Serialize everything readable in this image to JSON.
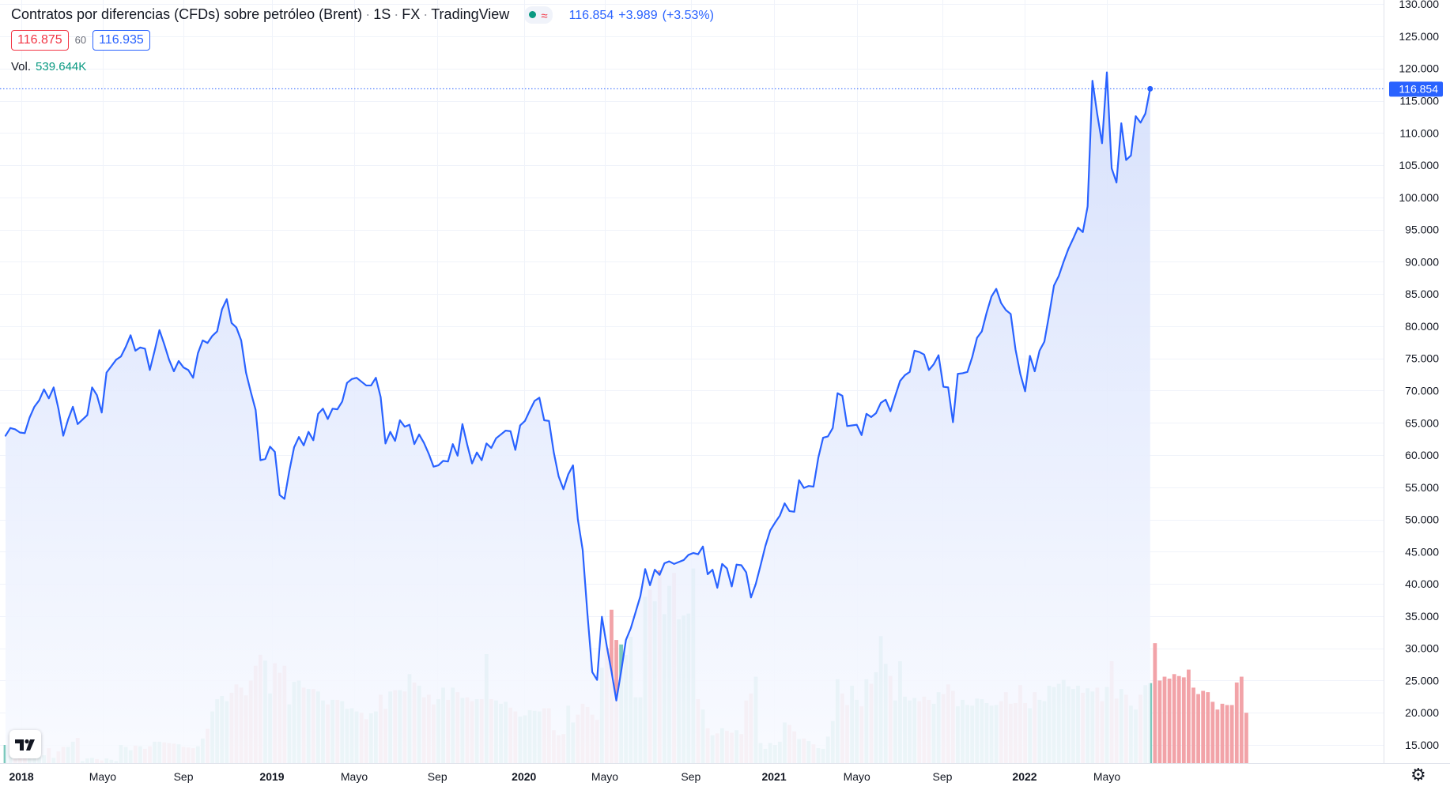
{
  "header": {
    "title": "Contratos por diferencias (CFDs) sobre petróleo (Brent)",
    "interval": "1S",
    "exchange": "FX",
    "provider": "TradingView",
    "last": "116.854",
    "change": "+3.989",
    "change_pct": "(+3.53%)",
    "bid": "116.875",
    "spread": "60",
    "ask": "116.935",
    "vol_label": "Vol.",
    "vol_value": "539.644K",
    "status_icon": "market-open-dot-icon",
    "approx_symbol": "≈"
  },
  "colors": {
    "line": "#2962ff",
    "area_top": "#d6e0fc",
    "area_bottom": "#f8faff",
    "vol_up": "#7cc9bd",
    "vol_down": "#f2a3a8",
    "grid": "#f0f3fa",
    "price_label_bg": "#2962ff"
  },
  "chart_data": {
    "type": "area",
    "title": "Contratos por diferencias (CFDs) sobre petróleo (Brent)",
    "xlabel": "",
    "ylabel": "",
    "ylim": [
      11,
      131
    ],
    "y_ticks": [
      "15.000",
      "20.000",
      "25.000",
      "30.000",
      "35.000",
      "40.000",
      "45.000",
      "50.000",
      "55.000",
      "60.000",
      "65.000",
      "70.000",
      "75.000",
      "80.000",
      "85.000",
      "90.000",
      "95.000",
      "100.000",
      "105.000",
      "110.000",
      "115.000",
      "120.000",
      "125.000",
      "130.000"
    ],
    "x_ticks": [
      {
        "label": "2018",
        "week": 3.3,
        "bold": true
      },
      {
        "label": "Mayo",
        "week": 20.2,
        "bold": false
      },
      {
        "label": "Sep",
        "week": 37.0,
        "bold": false
      },
      {
        "label": "2019",
        "week": 55.4,
        "bold": true
      },
      {
        "label": "Mayo",
        "week": 72.5,
        "bold": false
      },
      {
        "label": "Sep",
        "week": 89.8,
        "bold": false
      },
      {
        "label": "2020",
        "week": 107.8,
        "bold": true
      },
      {
        "label": "Mayo",
        "week": 124.6,
        "bold": false
      },
      {
        "label": "Sep",
        "week": 142.5,
        "bold": false
      },
      {
        "label": "2021",
        "week": 159.8,
        "bold": true
      },
      {
        "label": "Mayo",
        "week": 177.0,
        "bold": false
      },
      {
        "label": "Sep",
        "week": 194.8,
        "bold": false
      },
      {
        "label": "2022",
        "week": 211.9,
        "bold": true
      },
      {
        "label": "Mayo",
        "week": 229.0,
        "bold": false
      }
    ],
    "last_price_label": "116.854",
    "series": [
      {
        "name": "Brent",
        "values": [
          63.0,
          64.2,
          64.0,
          63.5,
          63.4,
          65.8,
          67.5,
          68.5,
          70.2,
          68.8,
          70.5,
          67.2,
          63.0,
          65.5,
          67.5,
          64.8,
          65.5,
          66.2,
          70.5,
          69.3,
          66.6,
          72.8,
          73.8,
          74.8,
          75.3,
          76.8,
          78.6,
          76.2,
          76.7,
          76.5,
          73.2,
          76.2,
          79.4,
          77.2,
          74.8,
          73.0,
          74.6,
          73.6,
          73.2,
          72.0,
          75.8,
          77.8,
          77.4,
          78.5,
          79.2,
          82.6,
          84.2,
          80.5,
          79.8,
          77.8,
          72.8,
          69.8,
          67.0,
          59.2,
          59.4,
          61.3,
          60.5,
          53.8,
          53.2,
          57.5,
          61.2,
          62.8,
          61.5,
          63.6,
          62.3,
          66.4,
          67.2,
          65.6,
          67.2,
          67.1,
          68.3,
          71.2,
          71.8,
          72.0,
          71.4,
          70.8,
          70.8,
          72.0,
          69.0,
          61.8,
          63.6,
          62.2,
          65.4,
          64.4,
          64.7,
          61.7,
          63.2,
          61.9,
          60.2,
          58.2,
          58.4,
          59.1,
          59.0,
          61.7,
          59.9,
          64.8,
          61.6,
          58.7,
          60.4,
          59.2,
          61.8,
          61.1,
          62.6,
          63.2,
          63.8,
          63.7,
          60.8,
          64.6,
          65.3,
          66.9,
          68.4,
          68.9,
          65.4,
          65.3,
          60.4,
          56.7,
          54.7,
          57.0,
          58.4,
          50.0,
          45.3,
          35.3,
          26.3,
          25.1,
          34.9,
          30.4,
          26.4,
          21.9,
          26.4,
          31.3,
          33.1,
          35.6,
          38.1,
          42.3,
          39.8,
          42.2,
          41.4,
          43.2,
          43.5,
          43.1,
          43.4,
          43.7,
          44.5,
          44.8,
          44.6,
          45.8,
          41.5,
          42.2,
          39.4,
          43.1,
          42.4,
          39.6,
          43.0,
          42.9,
          41.8,
          37.9,
          40.0,
          42.9,
          45.9,
          48.3,
          49.5,
          50.6,
          52.5,
          51.3,
          51.2,
          56.1,
          54.9,
          55.2,
          55.1,
          59.6,
          62.7,
          62.9,
          64.2,
          69.6,
          69.2,
          64.5,
          64.6,
          64.7,
          63.1,
          66.4,
          65.9,
          66.5,
          68.1,
          68.6,
          66.8,
          69.2,
          71.5,
          72.4,
          72.9,
          76.2,
          76.0,
          75.6,
          73.2,
          74.1,
          75.5,
          70.6,
          70.5,
          65.1,
          72.6,
          72.7,
          72.9,
          75.2,
          78.2,
          79.2,
          82.1,
          84.6,
          85.8,
          83.6,
          82.5,
          81.9,
          76.4,
          72.6,
          69.9,
          75.4,
          73.0,
          76.2,
          77.6,
          81.8,
          86.3,
          87.8,
          90.0,
          92.0,
          93.6,
          95.3,
          94.6,
          98.6,
          118.1,
          112.9,
          108.4,
          119.4,
          104.5,
          102.3,
          111.5,
          105.8,
          106.5,
          112.6,
          111.6,
          113.0,
          116.854
        ]
      }
    ],
    "volume_scale": {
      "unit": "price-axis",
      "note": "volume pane shares the price axis baseline"
    },
    "volume": [
      {
        "name": "Volume",
        "values": [
          15.0,
          13.5,
          12.8,
          13.9,
          14.2,
          14.1,
          14.8,
          13.2,
          13.4,
          14.5,
          13.0,
          14.0,
          14.7,
          14.7,
          15.5,
          16.1,
          12.5,
          12.9,
          13.0,
          12.8,
          12.6,
          12.9,
          12.7,
          12.5,
          15.0,
          14.7,
          14.2,
          14.9,
          14.8,
          14.4,
          14.8,
          15.5,
          15.5,
          15.4,
          15.3,
          15.2,
          15.1,
          14.7,
          14.6,
          14.5,
          14.8,
          16.0,
          17.5,
          20.2,
          22.1,
          22.6,
          21.8,
          23.1,
          24.4,
          23.9,
          22.7,
          25.0,
          27.3,
          29.0,
          28.1,
          23.0,
          27.7,
          26.2,
          27.3,
          21.3,
          24.8,
          25.0,
          23.9,
          23.7,
          23.7,
          23.3,
          21.9,
          21.3,
          22.0,
          22.0,
          21.8,
          20.6,
          20.7,
          20.2,
          20.0,
          19.0,
          19.9,
          20.2,
          22.8,
          20.6,
          23.3,
          23.5,
          23.5,
          23.3,
          26.0,
          24.7,
          24.2,
          22.4,
          22.8,
          21.3,
          22.1,
          23.9,
          22.0,
          23.9,
          23.2,
          22.3,
          22.4,
          21.8,
          22.1,
          22.1,
          29.1,
          22.1,
          21.9,
          21.4,
          21.7,
          20.8,
          20.2,
          19.4,
          19.6,
          20.4,
          20.3,
          20.2,
          20.7,
          20.7,
          17.3,
          16.5,
          16.7,
          21.1,
          18.5,
          19.7,
          21.4,
          20.9,
          19.7,
          18.9,
          27.0,
          30.0,
          36.0,
          31.3,
          30.6,
          29.0,
          31.8,
          22.4,
          22.4,
          38.0,
          39.1,
          37.3,
          42.1,
          35.3,
          39.7,
          41.7,
          34.5,
          35.1,
          35.4,
          42.4,
          22.1,
          20.5,
          17.6,
          16.5,
          16.8,
          17.6,
          17.2,
          16.9,
          17.3,
          16.7,
          21.9,
          23.0,
          25.6,
          15.3,
          14.4,
          15.3,
          15.0,
          15.5,
          18.5,
          18.1,
          17.1,
          15.9,
          16.0,
          15.6,
          15.1,
          14.5,
          14.4,
          16.3,
          18.7,
          25.2,
          23.0,
          21.2,
          24.2,
          22.0,
          21.0,
          25.2,
          24.5,
          26.3,
          31.9,
          27.6,
          25.7,
          21.9,
          28.0,
          22.5,
          21.9,
          22.3,
          21.8,
          22.5,
          22.0,
          21.4,
          23.2,
          22.9,
          24.4,
          23.4,
          21.0,
          22.0,
          21.2,
          21.1,
          22.2,
          22.1,
          21.5,
          21.1,
          21.2,
          21.8,
          23.2,
          21.4,
          21.5,
          24.3,
          21.5,
          20.7,
          23.2,
          22.0,
          21.8,
          24.2,
          24.0,
          24.5,
          25.1,
          24.1,
          23.7,
          24.2,
          23.1,
          23.8,
          23.3,
          23.9,
          21.8,
          24.0,
          28.0,
          22.2,
          23.7,
          22.8,
          21.1,
          20.5,
          22.8,
          24.3,
          24.6,
          30.8,
          25.0,
          25.6,
          25.3,
          26.0,
          25.7,
          25.5,
          26.7,
          23.9,
          22.9,
          23.4,
          23.2,
          21.7,
          20.5,
          21.4,
          21.2,
          21.2,
          24.7,
          25.6,
          20.0
        ]
      }
    ],
    "volume_direction": "per-bar color green when close >= previous close, red otherwise",
    "grid": true,
    "price_axis_position": "right"
  }
}
